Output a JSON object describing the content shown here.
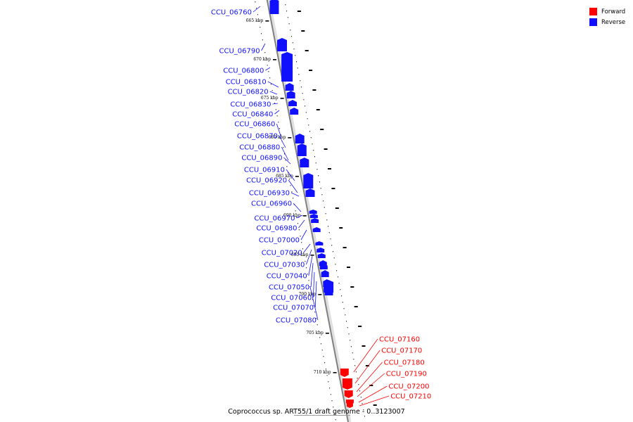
{
  "legend": {
    "forward_label": "Forward",
    "reverse_label": "Reverse",
    "forward_color": "#ff0000",
    "reverse_color": "#1010ff"
  },
  "caption": "Coprococcus sp. ART55/1 draft genome - 0..3123007",
  "kbp_ticks": [
    "665 kbp",
    "670 kbp",
    "675 kbp",
    "680 kbp",
    "685 kbp",
    "690 kbp",
    "695 kbp",
    "700 kbp",
    "705 kbp",
    "710 kbp"
  ],
  "reverse_genes": [
    "CCU_06760",
    "CCU_06790",
    "CCU_06800",
    "CCU_06810",
    "CCU_06820",
    "CCU_06830",
    "CCU_06840",
    "CCU_06860",
    "CCU_06870",
    "CCU_06880",
    "CCU_06890",
    "CCU_06910",
    "CCU_06920",
    "CCU_06930",
    "CCU_06960",
    "CCU_06970",
    "CCU_06980",
    "CCU_07000",
    "CCU_07020",
    "CCU_07030",
    "CCU_07040",
    "CCU_07050",
    "CCU_07060",
    "CCU_07070",
    "CCU_07080"
  ],
  "forward_genes": [
    "CCU_07160",
    "CCU_07170",
    "CCU_07180",
    "CCU_07190",
    "CCU_07200",
    "CCU_07210"
  ]
}
